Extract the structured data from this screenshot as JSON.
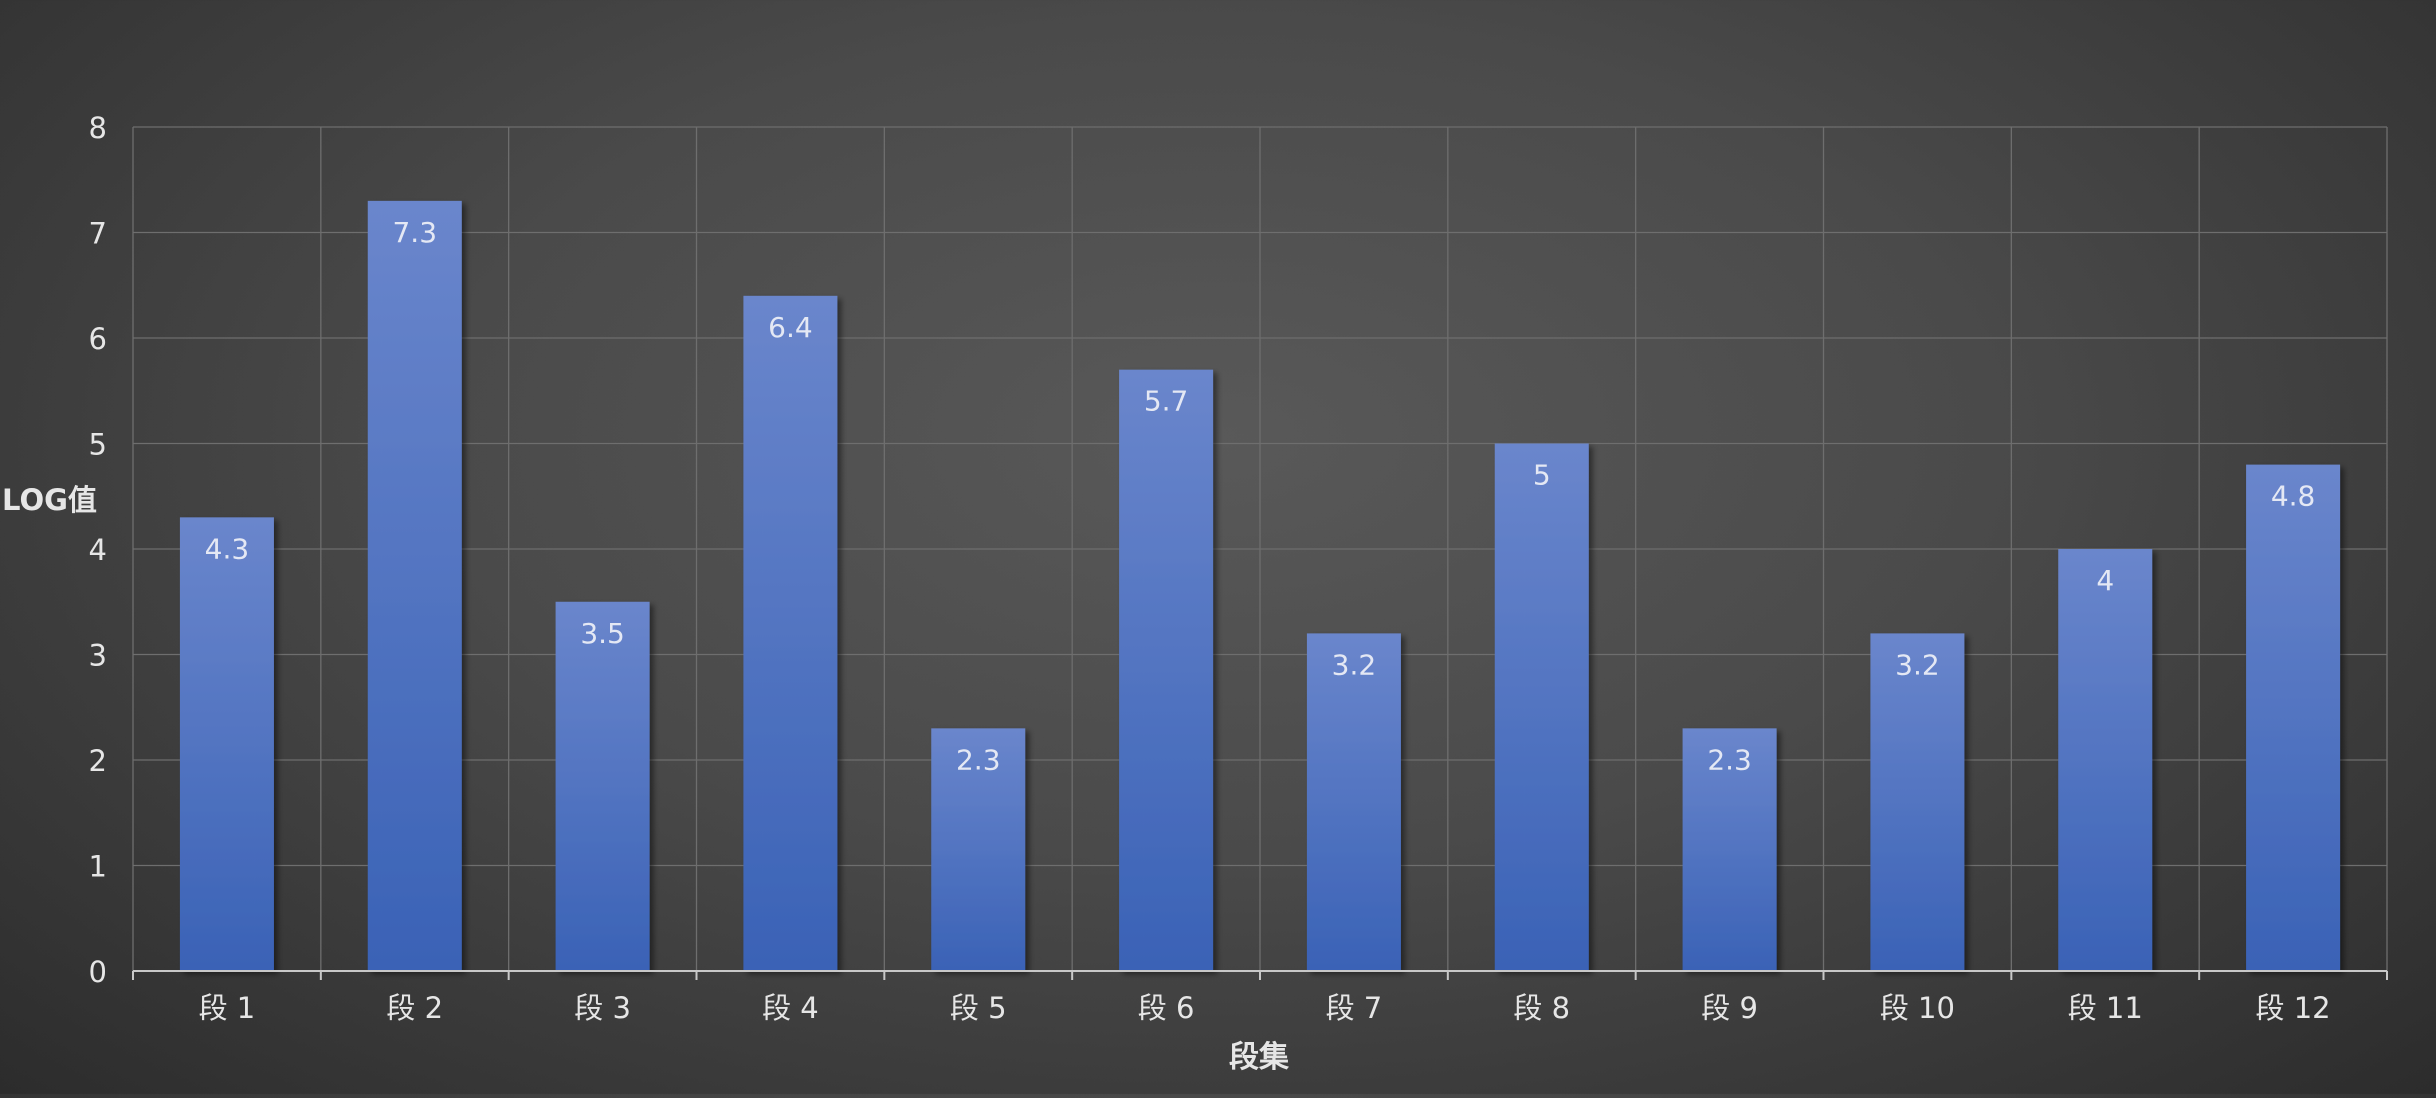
{
  "chart_data": {
    "type": "bar",
    "title": "",
    "xlabel": "段集",
    "ylabel": "LOG值",
    "categories": [
      "段 1",
      "段 2",
      "段 3",
      "段 4",
      "段 5",
      "段 6",
      "段 7",
      "段 8",
      "段 9",
      "段 10",
      "段 11",
      "段 12"
    ],
    "values": [
      4.3,
      7.3,
      3.5,
      6.4,
      2.3,
      5.7,
      3.2,
      5,
      2.3,
      3.2,
      4,
      4.8
    ],
    "data_labels": [
      "4.3",
      "7.3",
      "3.5",
      "6.4",
      "2.3",
      "5.7",
      "3.2",
      "5",
      "2.3",
      "3.2",
      "4",
      "4.8"
    ],
    "ylim": [
      0,
      8
    ],
    "yticks": [
      0,
      1,
      2,
      3,
      4,
      5,
      6,
      7,
      8
    ],
    "grid": true,
    "legend": "none",
    "colors": {
      "bar_top": "#6a86cc",
      "bar_bottom": "#3a62b6",
      "grid": "#6e6e6e",
      "axis": "#c8c8c8",
      "text": "#e6e6e6",
      "data_label": "#e4e8f4"
    }
  }
}
